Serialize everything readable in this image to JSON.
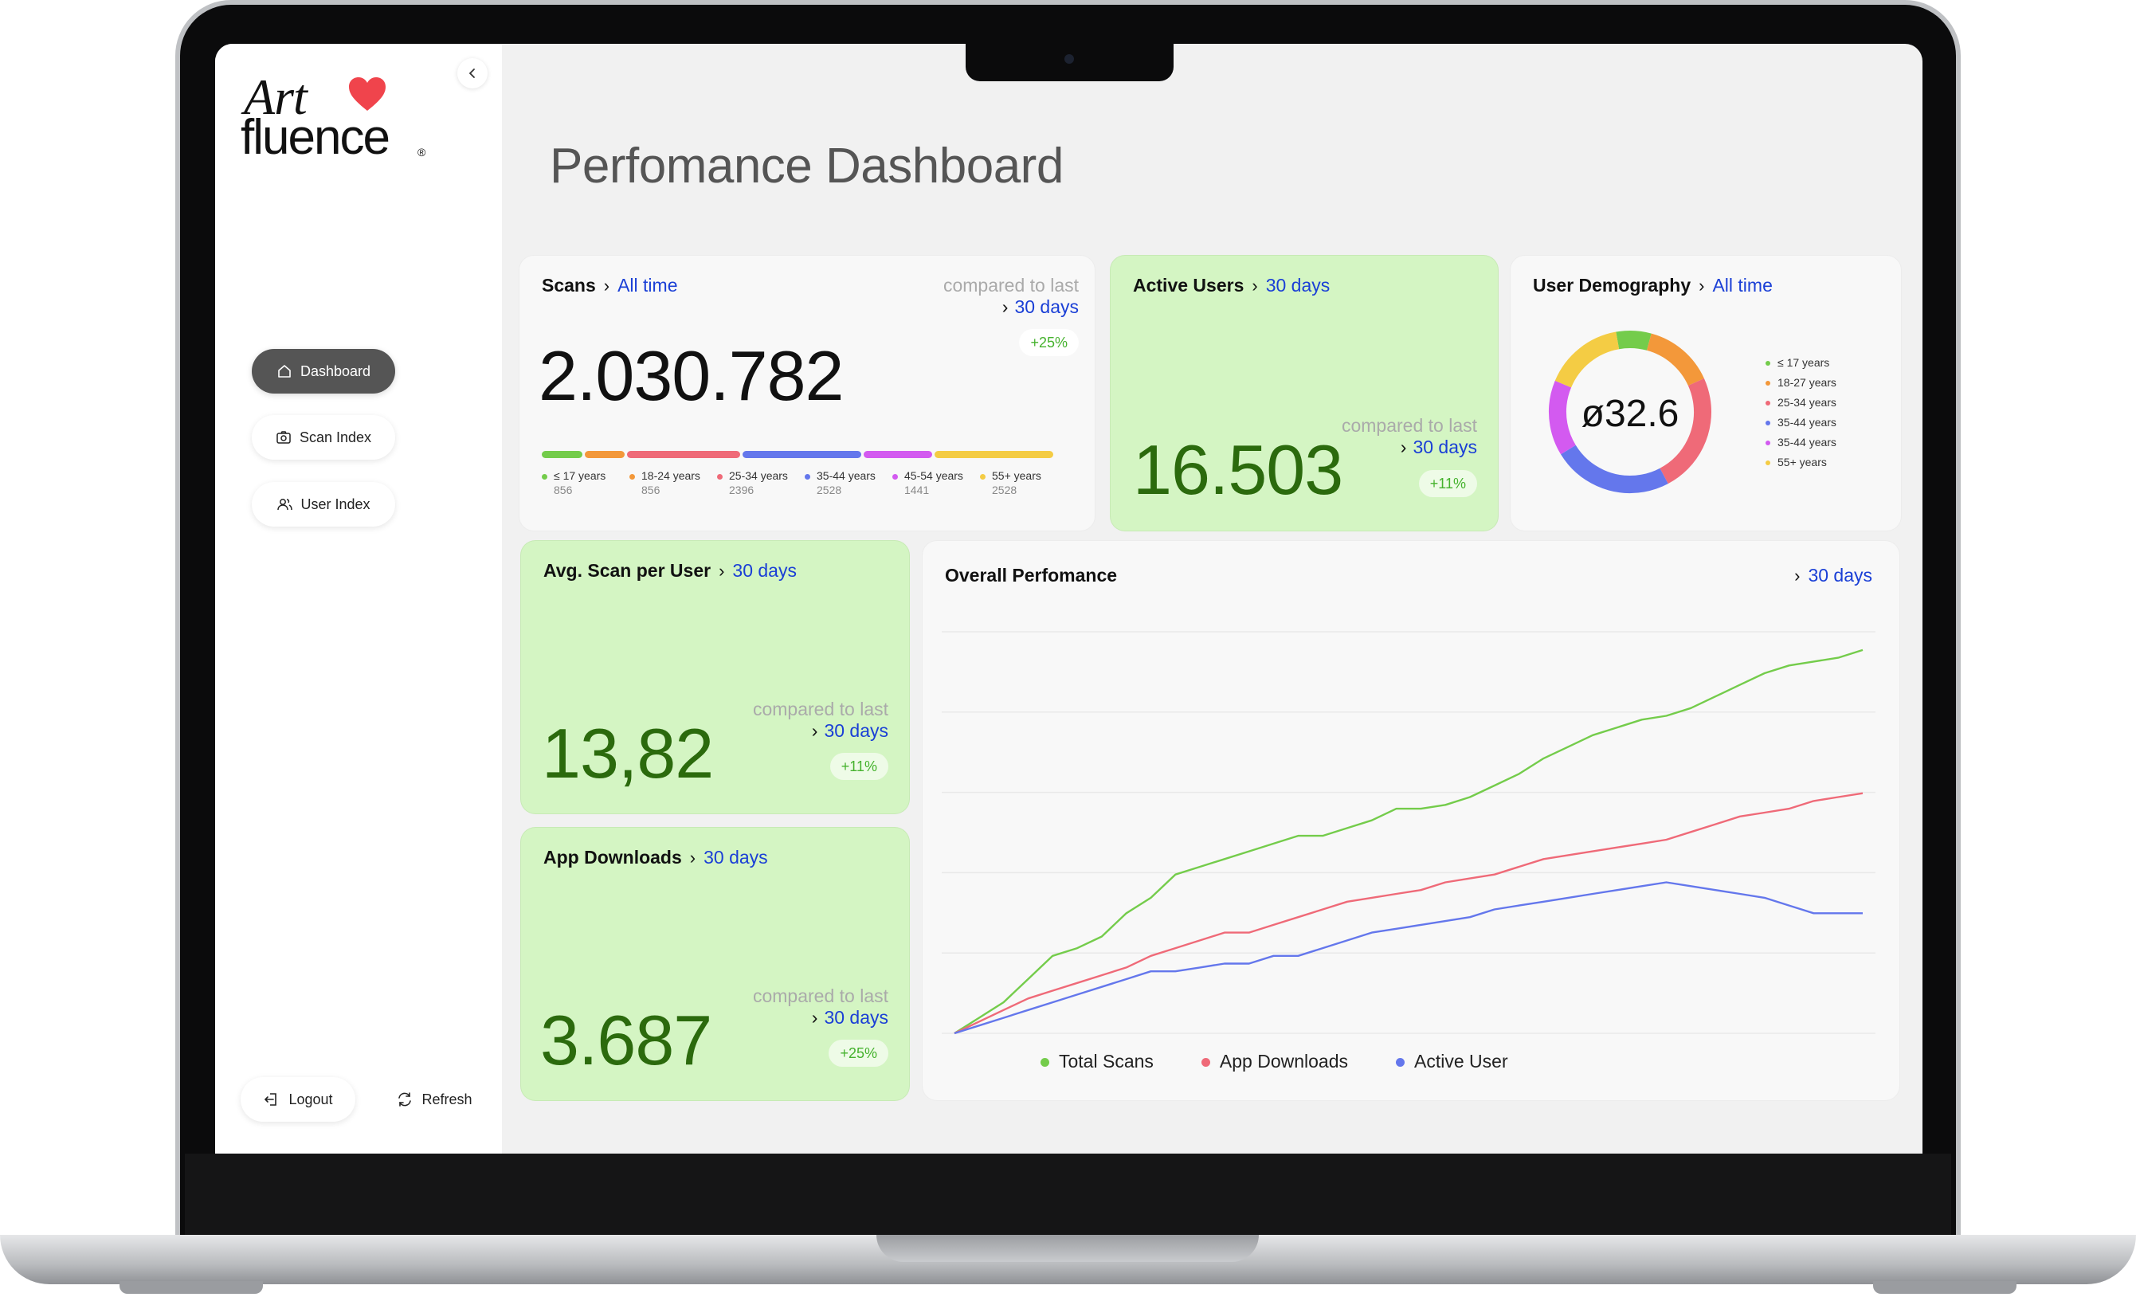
{
  "sidebar": {
    "logo": {
      "top": "Art",
      "bottom": "fluence",
      "registered": "®"
    },
    "nav": [
      {
        "label": "Dashboard",
        "icon": "home-icon",
        "active": true
      },
      {
        "label": "Scan Index",
        "icon": "camera-icon",
        "active": false
      },
      {
        "label": "User Index",
        "icon": "users-icon",
        "active": false
      }
    ],
    "logout_label": "Logout",
    "refresh_label": "Refresh"
  },
  "page": {
    "title": "Perfomance Dashboard"
  },
  "common": {
    "compared_label": "compared to last",
    "chevron": "›"
  },
  "scans": {
    "title": "Scans",
    "range": "All time",
    "compare_range": "30 days",
    "delta": "+25%",
    "value": "2.030.782",
    "age_groups": [
      {
        "label": "≤ 17 years",
        "count": "856",
        "color": "#74cc4b"
      },
      {
        "label": "18-24 years",
        "count": "856",
        "color": "#f3983a"
      },
      {
        "label": "25-34 years",
        "count": "2396",
        "color": "#ef6a78"
      },
      {
        "label": "35-44 years",
        "count": "2528",
        "color": "#6477ec"
      },
      {
        "label": "45-54 years",
        "count": "1441",
        "color": "#d35af0"
      },
      {
        "label": "55+ years",
        "count": "2528",
        "color": "#f4cc44"
      }
    ]
  },
  "active_users": {
    "title": "Active Users",
    "range": "30 days",
    "compare_range": "30 days",
    "delta": "+11%",
    "value": "16.503"
  },
  "demography": {
    "title": "User Demography",
    "range": "All time",
    "center_value": "ø32.6",
    "segments": [
      {
        "label": "≤ 17 years",
        "color": "#74cc4b",
        "share": 0.07
      },
      {
        "label": "18-27 years",
        "color": "#f3983a",
        "share": 0.14
      },
      {
        "label": "25-34 years",
        "color": "#ef6a78",
        "share": 0.24
      },
      {
        "label": "35-44 years",
        "color": "#6477ec",
        "share": 0.24
      },
      {
        "label": "35-44 years",
        "color": "#d35af0",
        "share": 0.15
      },
      {
        "label": "55+ years",
        "color": "#f4cc44",
        "share": 0.16
      }
    ]
  },
  "avg_scan": {
    "title": "Avg. Scan per User",
    "range": "30 days",
    "compare_range": "30 days",
    "delta": "+11%",
    "value": "13,82"
  },
  "app_downloads": {
    "title": "App Downloads",
    "range": "30 days",
    "compare_range": "30 days",
    "delta": "+25%",
    "value": "3.687"
  },
  "overall": {
    "title": "Overall Perfomance",
    "range": "30 days"
  },
  "chart_data": {
    "type": "line",
    "title": "Overall Perfomance",
    "x": [
      1,
      2,
      3,
      4,
      5,
      6,
      7,
      8,
      9,
      10,
      11,
      12,
      13,
      14,
      15,
      16,
      17,
      18,
      19,
      20,
      21,
      22,
      23,
      24,
      25,
      26,
      27,
      28,
      29,
      30,
      31,
      32,
      33,
      34,
      35,
      36,
      37,
      38
    ],
    "ylim": [
      0,
      100
    ],
    "grid": true,
    "legend_position": "bottom",
    "series": [
      {
        "name": "Total Scans",
        "color": "#74cc4b",
        "values": [
          0,
          4,
          8,
          14,
          20,
          22,
          25,
          31,
          35,
          41,
          43,
          45,
          47,
          49,
          51,
          51,
          53,
          55,
          58,
          58,
          59,
          61,
          64,
          67,
          71,
          74,
          77,
          79,
          81,
          82,
          84,
          87,
          90,
          93,
          95,
          96,
          97,
          99
        ]
      },
      {
        "name": "App Downloads",
        "color": "#ef6a78",
        "values": [
          0,
          3,
          6,
          9,
          11,
          13,
          15,
          17,
          20,
          22,
          24,
          26,
          26,
          28,
          30,
          32,
          34,
          35,
          36,
          37,
          39,
          40,
          41,
          43,
          45,
          46,
          47,
          48,
          49,
          50,
          52,
          54,
          56,
          57,
          58,
          60,
          61,
          62
        ]
      },
      {
        "name": "Active User",
        "color": "#6477ec",
        "values": [
          0,
          2,
          4,
          6,
          8,
          10,
          12,
          14,
          16,
          16,
          17,
          18,
          18,
          20,
          20,
          22,
          24,
          26,
          27,
          28,
          29,
          30,
          32,
          33,
          34,
          35,
          36,
          37,
          38,
          39,
          38,
          37,
          36,
          35,
          33,
          31,
          31,
          31
        ]
      }
    ]
  }
}
